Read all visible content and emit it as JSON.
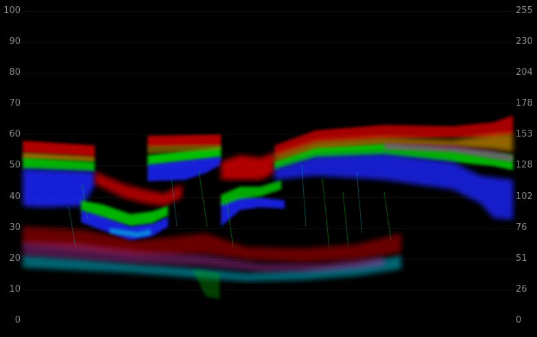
{
  "scope": {
    "left_scale": [
      "100",
      "90",
      "80",
      "70",
      "60",
      "50",
      "40",
      "30",
      "20",
      "10",
      "0"
    ],
    "right_scale": [
      "255",
      "230",
      "204",
      "178",
      "153",
      "128",
      "102",
      "76",
      "51",
      "26",
      "0"
    ],
    "left_scale_range": [
      0,
      100
    ],
    "right_scale_range": [
      0,
      255
    ],
    "channel_colors": {
      "red": "#e00000",
      "green": "#00e000",
      "blue": "#0020ff",
      "cyan": "#00d8e0",
      "magenta": "#c000c0",
      "orange": "#d08000"
    }
  }
}
